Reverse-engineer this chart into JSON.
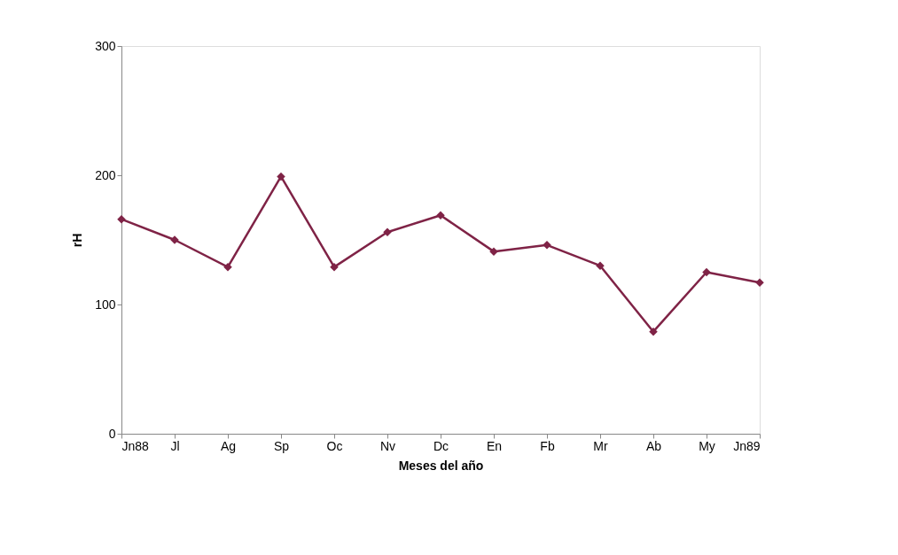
{
  "chart_data": {
    "type": "line",
    "xlabel": "Meses del año",
    "ylabel": "rH",
    "categories": [
      "Jn88",
      "Jl",
      "Ag",
      "Sp",
      "Oc",
      "Nv",
      "Dc",
      "En",
      "Fb",
      "Mr",
      "Ab",
      "My",
      "Jn89"
    ],
    "series": [
      {
        "color": "#7f2346",
        "values": [
          166,
          150,
          129,
          199,
          129,
          156,
          169,
          141,
          146,
          130,
          79,
          125,
          117
        ]
      }
    ],
    "ylim": [
      0,
      300
    ],
    "yticks": [
      0,
      100,
      200,
      300
    ],
    "grid": false,
    "marker": "diamond",
    "line_style": "solid"
  }
}
